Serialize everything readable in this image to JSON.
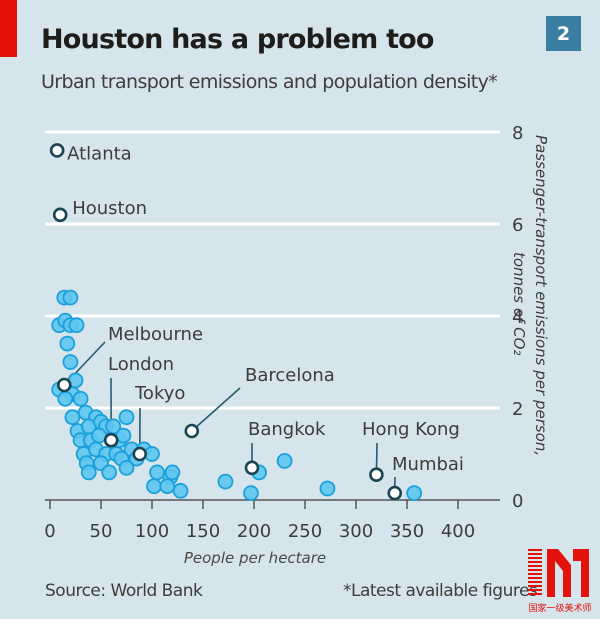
{
  "header": {
    "title": "Houston has a problem too",
    "subtitle": "Urban transport emissions and population density*",
    "badge": "2"
  },
  "footer": {
    "source": "Source: World Bank",
    "note": "*Latest available figures"
  },
  "watermark": {
    "caption": "国家一级美术师"
  },
  "colors": {
    "background": "#d6e4ec",
    "accent_red": "#e3120b",
    "badge": "#3a7ea1",
    "point_fill": "#5ec5f0",
    "point_stroke": "#1aa1dc",
    "highlight_stroke": "#1c4453",
    "gridline": "#ffffff",
    "axis": "#555555"
  },
  "chart_data": {
    "type": "scatter",
    "title": "Houston has a problem too",
    "subtitle": "Urban transport emissions and population density*",
    "xlabel": "People per hectare",
    "ylabel": "Passenger-transport emissions per person, tonnes of CO₂",
    "xlim": [
      0,
      400
    ],
    "ylim": [
      0,
      8
    ],
    "xticks": [
      0,
      50,
      100,
      150,
      200,
      250,
      300,
      350,
      400
    ],
    "yticks": [
      0,
      2,
      4,
      6,
      8
    ],
    "grid": "horizontal",
    "y_axis_side": "right",
    "highlighted": [
      {
        "name": "Atlanta",
        "x": 7,
        "y": 7.6
      },
      {
        "name": "Houston",
        "x": 10,
        "y": 6.2
      },
      {
        "name": "Melbourne",
        "x": 14,
        "y": 2.5
      },
      {
        "name": "London",
        "x": 60,
        "y": 1.3
      },
      {
        "name": "Tokyo",
        "x": 88,
        "y": 1.0
      },
      {
        "name": "Barcelona",
        "x": 139,
        "y": 1.5
      },
      {
        "name": "Bangkok",
        "x": 198,
        "y": 0.7
      },
      {
        "name": "Hong Kong",
        "x": 320,
        "y": 0.55
      },
      {
        "name": "Mumbai",
        "x": 338,
        "y": 0.15
      }
    ],
    "points": [
      {
        "x": 14,
        "y": 4.4
      },
      {
        "x": 20,
        "y": 4.4
      },
      {
        "x": 9,
        "y": 3.8
      },
      {
        "x": 15,
        "y": 3.9
      },
      {
        "x": 20,
        "y": 3.8
      },
      {
        "x": 26,
        "y": 3.8
      },
      {
        "x": 17,
        "y": 3.4
      },
      {
        "x": 20,
        "y": 3.0
      },
      {
        "x": 25,
        "y": 2.6
      },
      {
        "x": 22,
        "y": 2.3
      },
      {
        "x": 9,
        "y": 2.4
      },
      {
        "x": 15,
        "y": 2.2
      },
      {
        "x": 30,
        "y": 2.2
      },
      {
        "x": 22,
        "y": 1.8
      },
      {
        "x": 35,
        "y": 1.9
      },
      {
        "x": 45,
        "y": 1.8
      },
      {
        "x": 27,
        "y": 1.5
      },
      {
        "x": 38,
        "y": 1.6
      },
      {
        "x": 50,
        "y": 1.7
      },
      {
        "x": 55,
        "y": 1.6
      },
      {
        "x": 62,
        "y": 1.6
      },
      {
        "x": 75,
        "y": 1.8
      },
      {
        "x": 30,
        "y": 1.3
      },
      {
        "x": 40,
        "y": 1.3
      },
      {
        "x": 48,
        "y": 1.4
      },
      {
        "x": 68,
        "y": 1.3
      },
      {
        "x": 72,
        "y": 1.4
      },
      {
        "x": 33,
        "y": 1.0
      },
      {
        "x": 45,
        "y": 1.1
      },
      {
        "x": 55,
        "y": 1.0
      },
      {
        "x": 65,
        "y": 1.0
      },
      {
        "x": 80,
        "y": 1.1
      },
      {
        "x": 92,
        "y": 1.1
      },
      {
        "x": 100,
        "y": 1.0
      },
      {
        "x": 36,
        "y": 0.8
      },
      {
        "x": 50,
        "y": 0.8
      },
      {
        "x": 70,
        "y": 0.9
      },
      {
        "x": 85,
        "y": 0.9
      },
      {
        "x": 38,
        "y": 0.6
      },
      {
        "x": 58,
        "y": 0.6
      },
      {
        "x": 75,
        "y": 0.7
      },
      {
        "x": 105,
        "y": 0.6
      },
      {
        "x": 118,
        "y": 0.5
      },
      {
        "x": 120,
        "y": 0.6
      },
      {
        "x": 102,
        "y": 0.3
      },
      {
        "x": 115,
        "y": 0.3
      },
      {
        "x": 128,
        "y": 0.2
      },
      {
        "x": 172,
        "y": 0.4
      },
      {
        "x": 205,
        "y": 0.6
      },
      {
        "x": 230,
        "y": 0.85
      },
      {
        "x": 197,
        "y": 0.15
      },
      {
        "x": 272,
        "y": 0.25
      },
      {
        "x": 357,
        "y": 0.15
      }
    ]
  }
}
